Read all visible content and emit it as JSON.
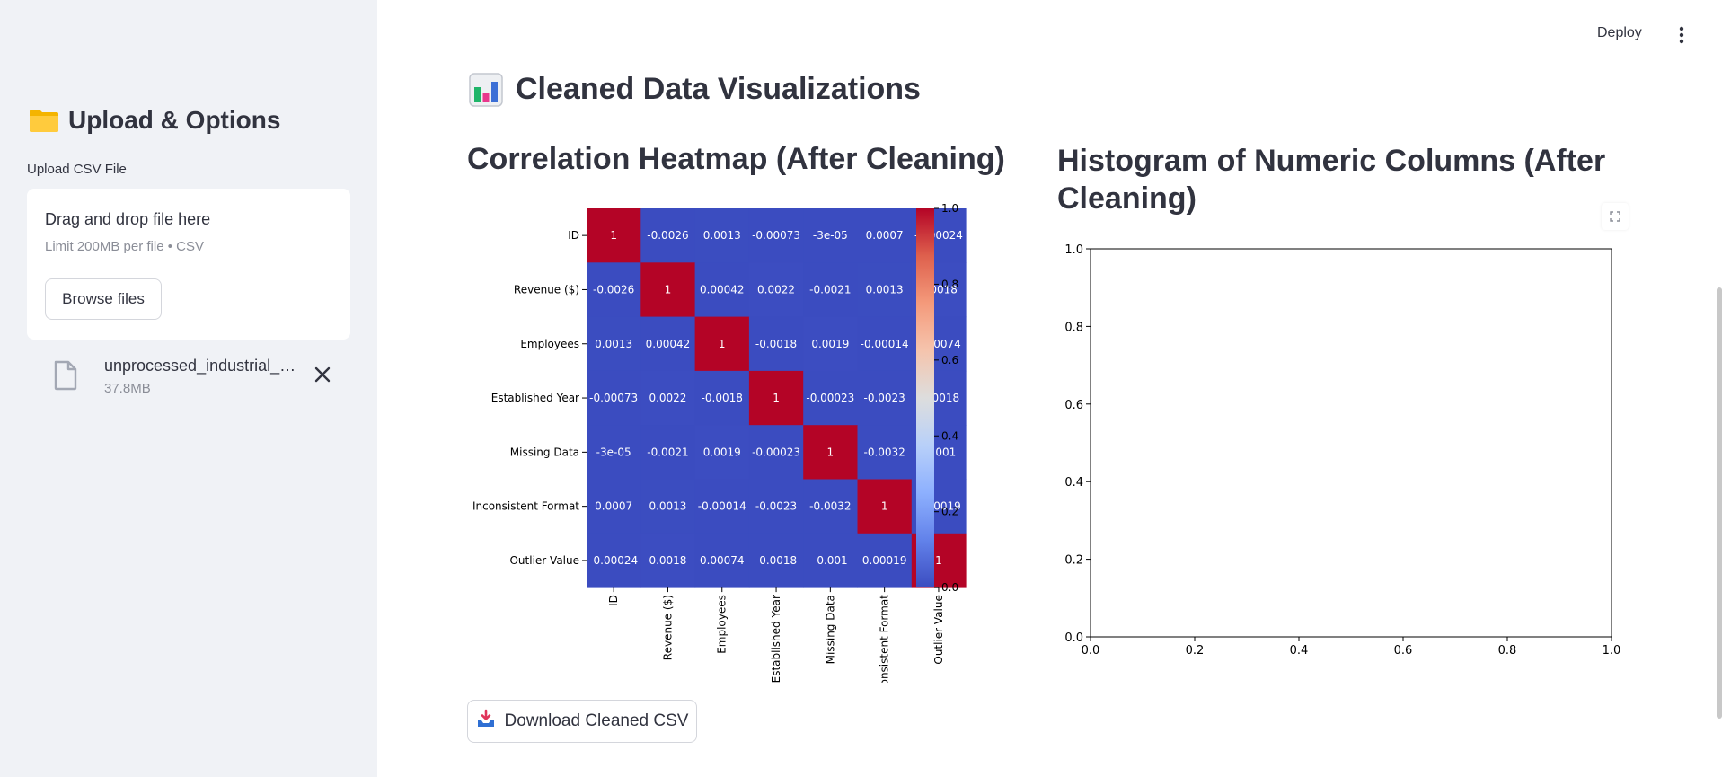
{
  "sidebar": {
    "header": "Upload & Options",
    "uploader_label": "Upload CSV File",
    "dropzone_title": "Drag and drop file here",
    "dropzone_limit": "Limit 200MB per file • CSV",
    "browse_label": "Browse files",
    "file_name": "unprocessed_industrial_…",
    "file_size": "37.8MB",
    "icons": {
      "header": "folder-icon",
      "file": "file-icon",
      "remove": "close-icon"
    }
  },
  "topbar": {
    "deploy_label": "Deploy",
    "menu_icon": "more-vertical-icon"
  },
  "main": {
    "title": "Cleaned Data Visualizations",
    "title_icon": "bar-chart-icon",
    "heatmap_title": "Correlation Heatmap (After Cleaning)",
    "histogram_title": "Histogram of Numeric Columns (After Cleaning)",
    "download_label": "Download Cleaned CSV",
    "download_icon": "inbox-tray-icon"
  },
  "chart_data": [
    {
      "type": "heatmap",
      "title": "Correlation Heatmap (After Cleaning)",
      "labels": [
        "ID",
        "Revenue ($)",
        "Employees",
        "Established Year",
        "Missing Data",
        "Inconsistent Format",
        "Outlier Value"
      ],
      "cells": [
        [
          "1",
          "-0.0026",
          "0.0013",
          "-0.00073",
          "-3e-05",
          "0.0007",
          "-0.00024"
        ],
        [
          "-0.0026",
          "1",
          "0.00042",
          "0.0022",
          "-0.0021",
          "0.0013",
          "0.0018"
        ],
        [
          "0.0013",
          "0.00042",
          "1",
          "-0.0018",
          "0.0019",
          "-0.00014",
          "0.00074"
        ],
        [
          "-0.00073",
          "0.0022",
          "-0.0018",
          "1",
          "-0.00023",
          "-0.0023",
          "-0.0018"
        ],
        [
          "-3e-05",
          "-0.0021",
          "0.0019",
          "-0.00023",
          "1",
          "-0.0032",
          "-0.001"
        ],
        [
          "0.0007",
          "0.0013",
          "-0.00014",
          "-0.0023",
          "-0.0032",
          "1",
          "0.00019"
        ],
        [
          "-0.00024",
          "0.0018",
          "0.00074",
          "-0.0018",
          "-0.001",
          "0.00019",
          "1"
        ]
      ],
      "colormap": "coolwarm",
      "colorbar_range": [
        0.0,
        1.0
      ],
      "colorbar_ticks": [
        "0.0",
        "0.2",
        "0.4",
        "0.6",
        "0.8",
        "1.0"
      ],
      "low_color": "#3b4cc0",
      "high_color": "#b40426"
    },
    {
      "type": "bar",
      "title": "Histogram of Numeric Columns (After Cleaning)",
      "series": [],
      "xlim": [
        0.0,
        1.0
      ],
      "ylim": [
        0.0,
        1.0
      ],
      "x_ticks": [
        "0.0",
        "0.2",
        "0.4",
        "0.6",
        "0.8",
        "1.0"
      ],
      "y_ticks": [
        "0.0",
        "0.2",
        "0.4",
        "0.6",
        "0.8",
        "1.0"
      ]
    }
  ]
}
